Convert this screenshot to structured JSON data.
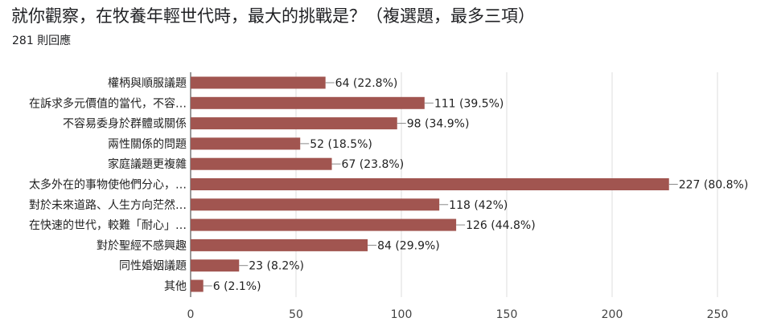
{
  "question": {
    "title": "就你觀察，在牧養年輕世代時，最大的挑戰是？（複選題，最多三項）",
    "response_count": "281 則回應"
  },
  "chart_data": {
    "type": "bar",
    "orientation": "horizontal",
    "categories": [
      "權柄與順服議題",
      "在訴求多元價值的當代，不容…",
      "不容易委身於群體或關係",
      "兩性關係的問題",
      "家庭議題更複雜",
      "太多外在的事物使他們分心，…",
      "對於未來道路、人生方向茫然…",
      "在快速的世代，較難「耐心」…",
      "對於聖經不感興趣",
      "同性婚姻議題",
      "其他"
    ],
    "values": [
      64,
      111,
      98,
      52,
      67,
      227,
      118,
      126,
      84,
      23,
      6
    ],
    "value_labels": [
      "64 (22.8%)",
      "111 (39.5%)",
      "98 (34.9%)",
      "52 (18.5%)",
      "67 (23.8%)",
      "227 (80.8%)",
      "118 (42%)",
      "126 (44.8%)",
      "84 (29.9%)",
      "23 (8.2%)",
      "6 (2.1%)"
    ],
    "xlim": [
      0,
      250
    ],
    "xticks": [
      "0",
      "50",
      "100",
      "150",
      "200",
      "250"
    ],
    "grid": true,
    "bar_color": "#a15550"
  }
}
